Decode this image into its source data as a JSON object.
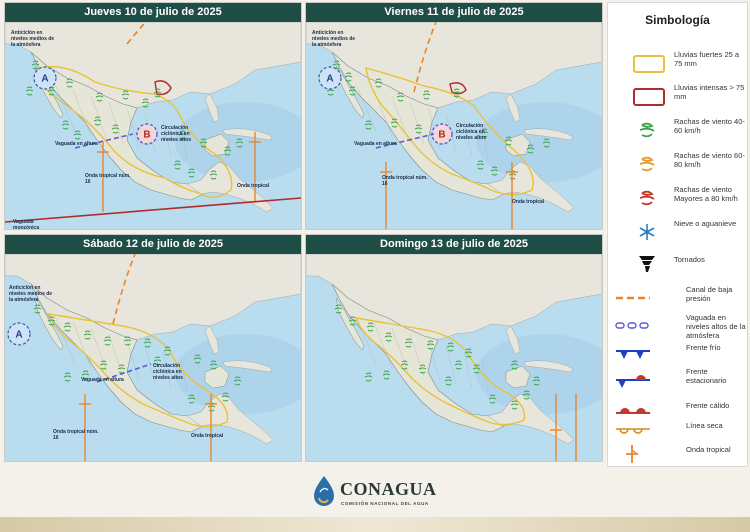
{
  "panels": [
    {
      "title": "Jueves 10 de julio de 2025",
      "labels": {
        "anticyclone": "Anticiclón en niveles medios de la atmósfera",
        "cyclonic": "Circulación ciclónica en niveles altos",
        "trough": "Vaguada en altura",
        "wave16": "Onda tropical núm. 16",
        "wave_tropical": "Onda tropical",
        "monsoon": "Vaguada monzónica"
      }
    },
    {
      "title": "Viernes 11 de julio de 2025",
      "labels": {
        "anticyclone": "Anticiclón en niveles medios de la atmósfera",
        "cyclonic": "Circulación ciclónica en niveles altos",
        "trough": "Vaguada en altura",
        "wave16": "Onda tropical núm. 16",
        "wave_tropical": "Onda tropical"
      }
    },
    {
      "title": "Sábado 12 de julio de 2025",
      "labels": {
        "anticyclone": "Anticiclón en niveles medios de la atmósfera",
        "cyclonic": "Circulación ciclónica en niveles altos",
        "trough": "Vaguada en altura",
        "wave16": "Onda tropical núm. 16",
        "wave_tropical": "Onda tropical"
      }
    },
    {
      "title": "Domingo 13 de julio de 2025",
      "labels": {}
    }
  ],
  "legend": {
    "title": "Simbología",
    "items": [
      {
        "id": "heavy-rain",
        "text": "Lluvias fuertes 25 a 75 mm",
        "color": "#e8c23a"
      },
      {
        "id": "intense-rain",
        "text": "Lluvias intensas > 75 mm",
        "color": "#b22b2b"
      },
      {
        "id": "wind-40-60",
        "text": "Rachas de viento 40-60 km/h",
        "color": "#3ca34a"
      },
      {
        "id": "wind-60-80",
        "text": "Rachas de viento 60-80 km/h",
        "color": "#e89a2a"
      },
      {
        "id": "wind-80",
        "text": "Rachas de viento Mayores a 80 km/h",
        "color": "#c0392b"
      },
      {
        "id": "snow",
        "text": "Nieve o aguanieve",
        "color": "#2b7fc4"
      },
      {
        "id": "tornado",
        "text": "Tornados",
        "color": "#111111"
      },
      {
        "id": "low-pressure",
        "text": "Canal de baja presión",
        "color": "#e8862a"
      },
      {
        "id": "upper-trough",
        "text": "Vaguada en niveles altos de la atmósfera",
        "color": "#5b5bd6"
      },
      {
        "id": "cold-front",
        "text": "Frente frío",
        "color": "#1f3fbf"
      },
      {
        "id": "stationary-front",
        "text": "Frente estacionario",
        "color": "#c0392b"
      },
      {
        "id": "warm-front",
        "text": "Frente cálido",
        "color": "#c0392b"
      },
      {
        "id": "dry-line",
        "text": "Línea seca",
        "color": "#d98a1a"
      },
      {
        "id": "tropical-wave",
        "text": "Onda tropical",
        "color": "#e8862a"
      }
    ]
  },
  "footer": {
    "brand": "CONAGUA",
    "subtitle": "COMISIÓN NACIONAL DEL AGUA"
  },
  "colors": {
    "header": "#1f4e46",
    "ocean": "#b9dcef",
    "land": "#e6e6d8",
    "rain_yellow": "#e8c23a",
    "rain_red": "#b22b2b",
    "wind_green": "#3ca34a",
    "wave_orange": "#e8862a"
  }
}
